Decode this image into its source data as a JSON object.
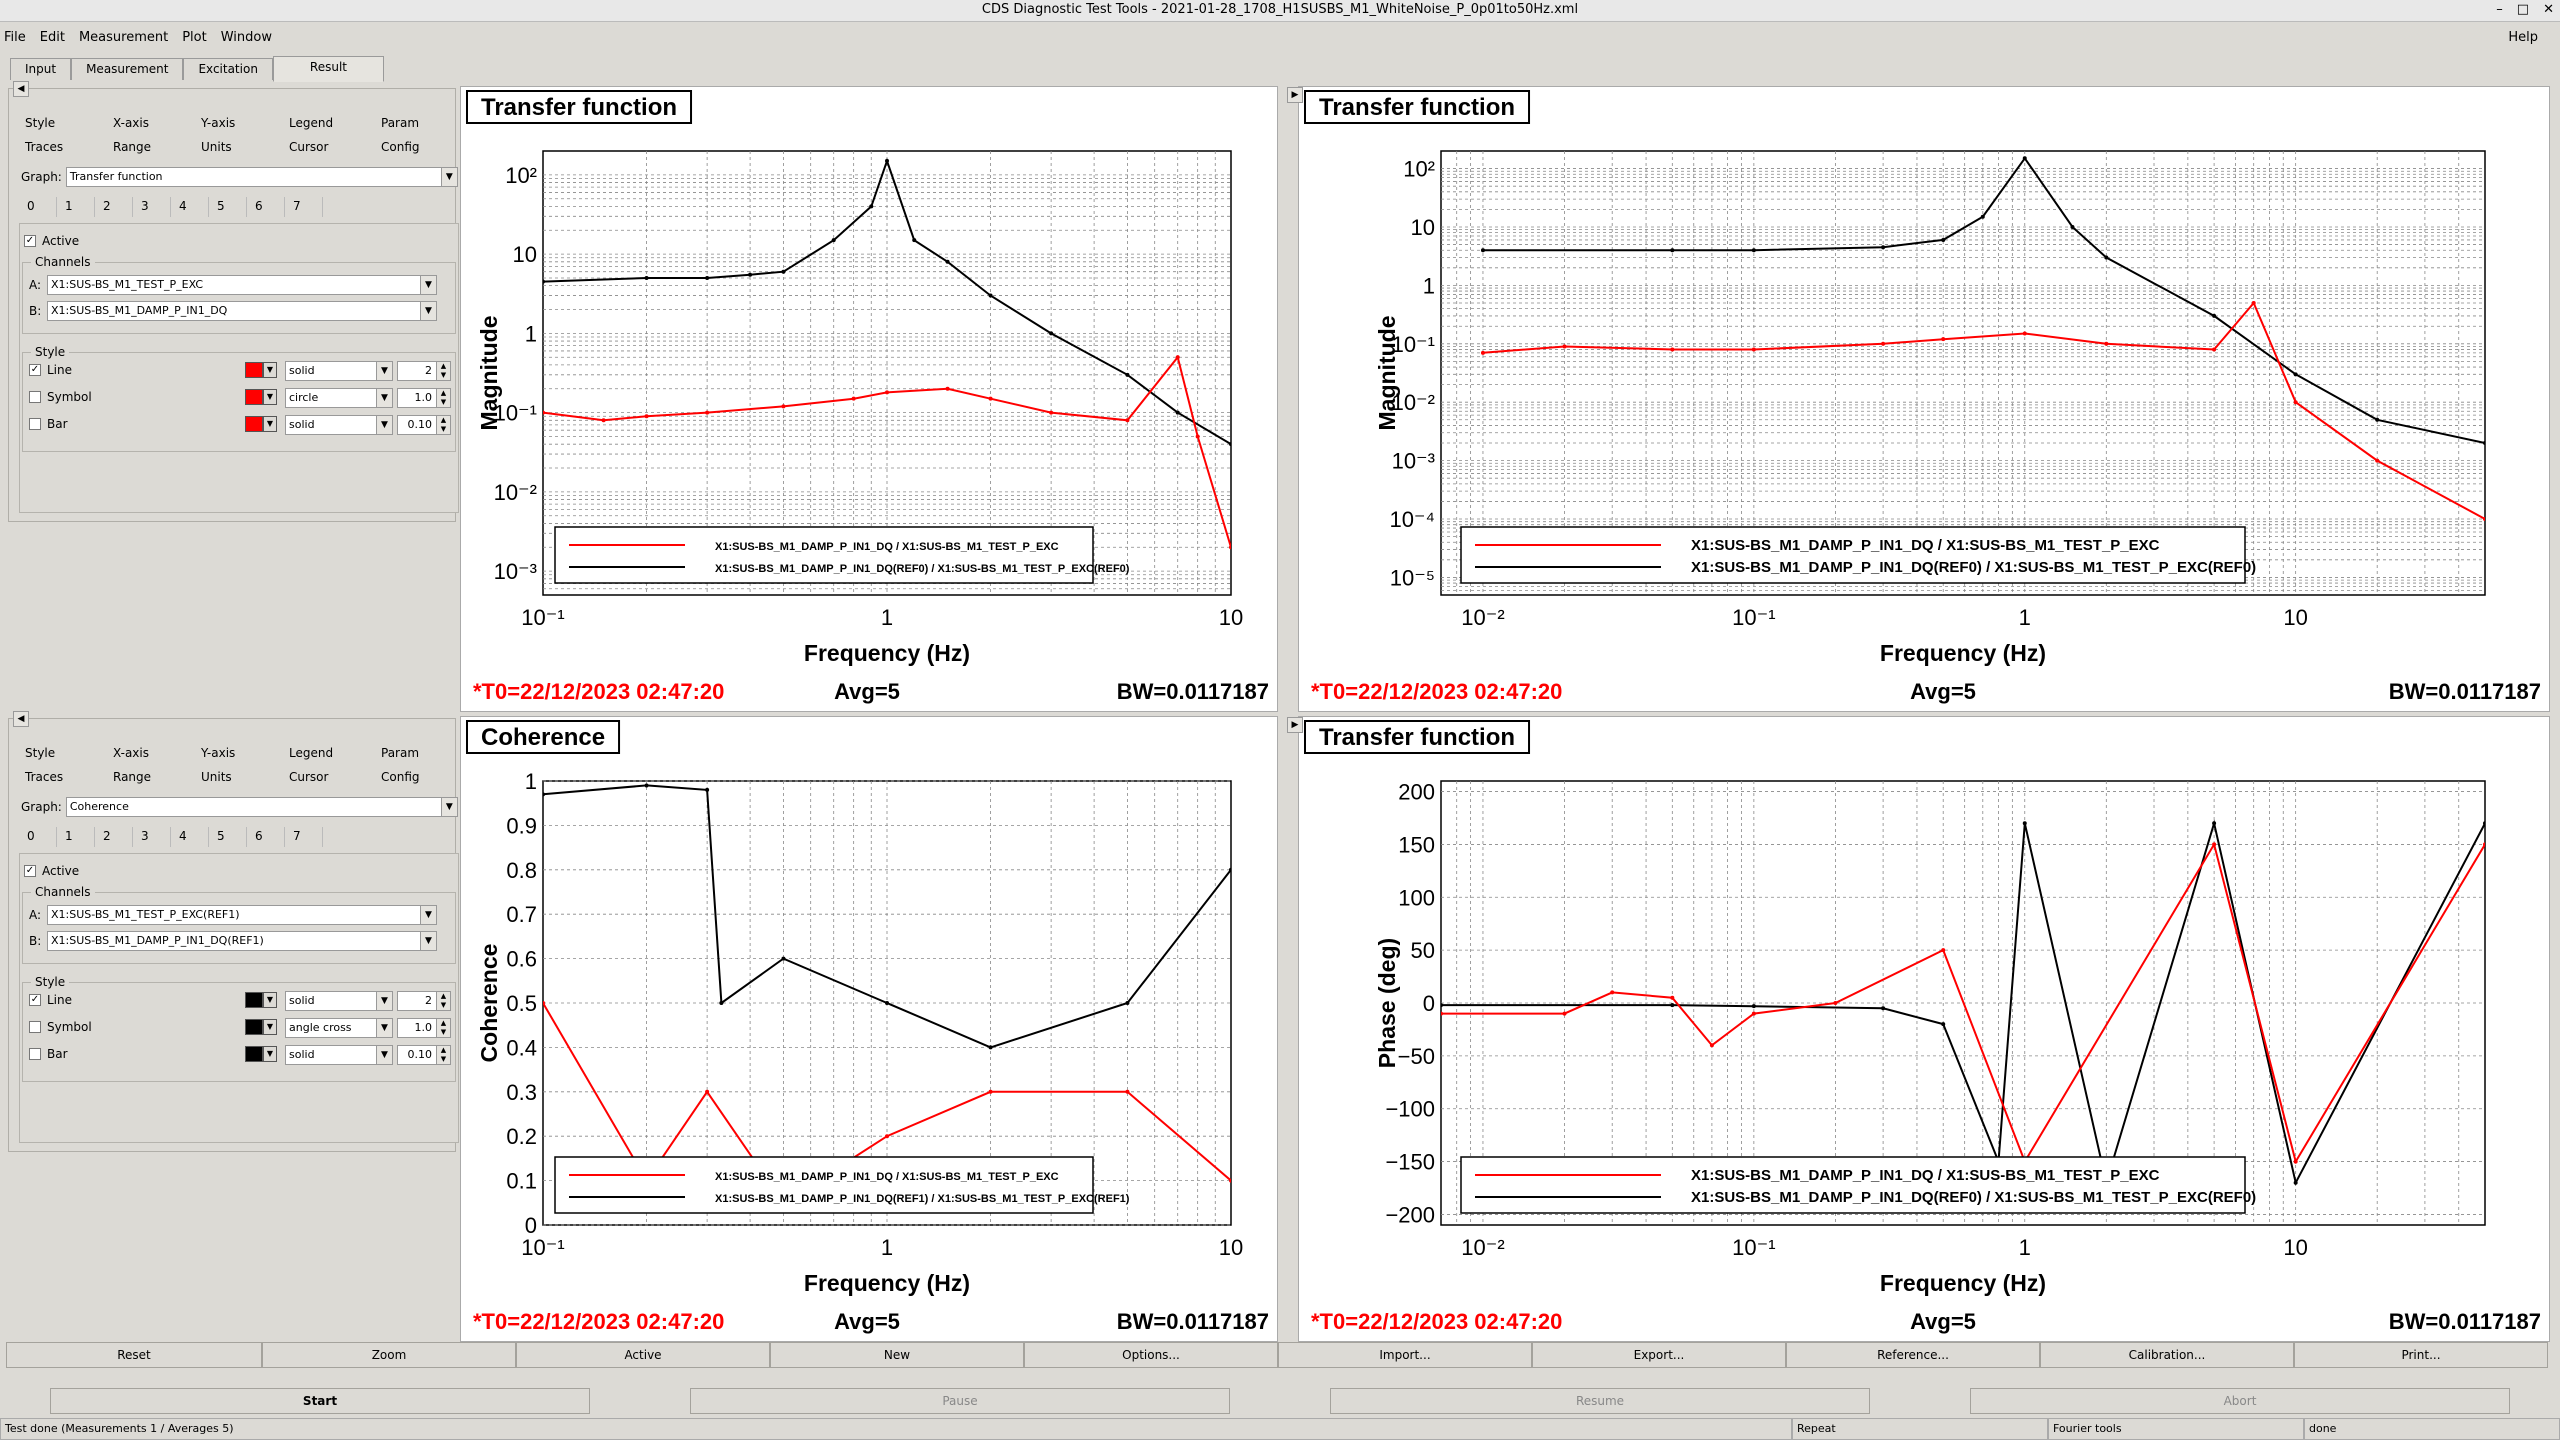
{
  "window": {
    "title": "CDS Diagnostic Test Tools - 2021-01-28_1708_H1SUSBS_M1_WhiteNoise_P_0p01to50Hz.xml"
  },
  "menu": [
    "File",
    "Edit",
    "Measurement",
    "Plot",
    "Window"
  ],
  "menu_help": "Help",
  "tabs": [
    "Input",
    "Measurement",
    "Excitation",
    "Result"
  ],
  "panels": [
    {
      "style_tabs": [
        "Style",
        "X-axis",
        "Y-axis",
        "Legend",
        "Param",
        "Traces",
        "Range",
        "Units",
        "Cursor",
        "Config"
      ],
      "graph_label": "Graph:",
      "graph": "Transfer function",
      "trace_tabs": [
        "0",
        "1",
        "2",
        "3",
        "4",
        "5",
        "6",
        "7"
      ],
      "active": "Active",
      "channels_label": "Channels",
      "a_label": "A:",
      "a": "X1:SUS-BS_M1_TEST_P_EXC",
      "b_label": "B:",
      "b": "X1:SUS-BS_M1_DAMP_P_IN1_DQ",
      "style_label": "Style",
      "line": {
        "label": "Line",
        "checked": "✓",
        "color": "#ff0000",
        "type": "solid",
        "width": "2"
      },
      "symbol": {
        "label": "Symbol",
        "color": "#ff0000",
        "type": "circle",
        "size": "1.0"
      },
      "bar": {
        "label": "Bar",
        "color": "#ff0000",
        "type": "solid",
        "width": "0.10"
      }
    },
    {
      "style_tabs": [
        "Style",
        "X-axis",
        "Y-axis",
        "Legend",
        "Param",
        "Traces",
        "Range",
        "Units",
        "Cursor",
        "Config"
      ],
      "graph_label": "Graph:",
      "graph": "Coherence",
      "trace_tabs": [
        "0",
        "1",
        "2",
        "3",
        "4",
        "5",
        "6",
        "7"
      ],
      "active": "Active",
      "channels_label": "Channels",
      "a_label": "A:",
      "a": "X1:SUS-BS_M1_TEST_P_EXC(REF1)",
      "b_label": "B:",
      "b": "X1:SUS-BS_M1_DAMP_P_IN1_DQ(REF1)",
      "style_label": "Style",
      "line": {
        "label": "Line",
        "checked": "✓",
        "color": "#000000",
        "type": "solid",
        "width": "2"
      },
      "symbol": {
        "label": "Symbol",
        "color": "#000000",
        "type": "angle cross",
        "size": "1.0"
      },
      "bar": {
        "label": "Bar",
        "color": "#000000",
        "type": "solid",
        "width": "0.10"
      }
    }
  ],
  "plots": [
    {
      "title": "Transfer function",
      "ylabel": "Magnitude",
      "xlabel": "Frequency (Hz)",
      "t0": "*T0=22/12/2023 02:47:20",
      "avg": "Avg=5",
      "bw": "BW=0.0117187",
      "xticks": [
        "10⁻¹",
        "1",
        "10"
      ],
      "yticks": [
        "10²",
        "10",
        "1",
        "10⁻¹",
        "10⁻²",
        "10⁻³"
      ],
      "legend": [
        "X1:SUS-BS_M1_DAMP_P_IN1_DQ / X1:SUS-BS_M1_TEST_P_EXC",
        "X1:SUS-BS_M1_DAMP_P_IN1_DQ(REF0) / X1:SUS-BS_M1_TEST_P_EXC(REF0)"
      ]
    },
    {
      "title": "Transfer function",
      "ylabel": "Magnitude",
      "xlabel": "Frequency (Hz)",
      "t0": "*T0=22/12/2023 02:47:20",
      "avg": "Avg=5",
      "bw": "BW=0.0117187",
      "xticks": [
        "10⁻²",
        "10⁻¹",
        "1",
        "10"
      ],
      "yticks": [
        "10²",
        "10",
        "1",
        "10⁻¹",
        "10⁻²",
        "10⁻³",
        "10⁻⁴",
        "10⁻⁵"
      ],
      "legend": [
        "X1:SUS-BS_M1_DAMP_P_IN1_DQ / X1:SUS-BS_M1_TEST_P_EXC",
        "X1:SUS-BS_M1_DAMP_P_IN1_DQ(REF0) / X1:SUS-BS_M1_TEST_P_EXC(REF0)"
      ]
    },
    {
      "title": "Coherence",
      "ylabel": "Coherence",
      "xlabel": "Frequency (Hz)",
      "t0": "*T0=22/12/2023 02:47:20",
      "avg": "Avg=5",
      "bw": "BW=0.0117187",
      "xticks": [
        "10⁻¹",
        "1",
        "10"
      ],
      "yticks": [
        "1",
        "0.9",
        "0.8",
        "0.7",
        "0.6",
        "0.5",
        "0.4",
        "0.3",
        "0.2",
        "0.1",
        "0"
      ],
      "legend": [
        "X1:SUS-BS_M1_DAMP_P_IN1_DQ / X1:SUS-BS_M1_TEST_P_EXC",
        "X1:SUS-BS_M1_DAMP_P_IN1_DQ(REF1) / X1:SUS-BS_M1_TEST_P_EXC(REF1)"
      ]
    },
    {
      "title": "Transfer function",
      "ylabel": "Phase (deg)",
      "xlabel": "Frequency (Hz)",
      "t0": "*T0=22/12/2023 02:47:20",
      "avg": "Avg=5",
      "bw": "BW=0.0117187",
      "xticks": [
        "10⁻²",
        "10⁻¹",
        "1",
        "10"
      ],
      "yticks": [
        "200",
        "150",
        "100",
        "50",
        "0",
        "−50",
        "−100",
        "−150",
        "−200"
      ],
      "legend": [
        "X1:SUS-BS_M1_DAMP_P_IN1_DQ / X1:SUS-BS_M1_TEST_P_EXC",
        "X1:SUS-BS_M1_DAMP_P_IN1_DQ(REF0) / X1:SUS-BS_M1_TEST_P_EXC(REF0)"
      ]
    }
  ],
  "buttons": [
    "Reset",
    "Zoom",
    "Active",
    "New",
    "Options...",
    "Import...",
    "Export...",
    "Reference...",
    "Calibration...",
    "Print..."
  ],
  "run_buttons": [
    "Start",
    "Pause",
    "Resume",
    "Abort"
  ],
  "status": [
    "Test done (Measurements 1 / Averages 5)",
    "Repeat",
    "Fourier tools",
    "done"
  ],
  "colors": {
    "measurement": "#ff0000",
    "reference": "#000000",
    "t0_text": "#ff0000"
  },
  "chart_data": [
    {
      "type": "line",
      "title": "Transfer function",
      "xlabel": "Frequency (Hz)",
      "ylabel": "Magnitude",
      "xscale": "log",
      "yscale": "log",
      "xlim": [
        0.1,
        10
      ],
      "ylim": [
        0.0005,
        200
      ],
      "grid": true,
      "legend_position": "bottom",
      "series": [
        {
          "name": "X1:SUS-BS_M1_DAMP_P_IN1_DQ / X1:SUS-BS_M1_TEST_P_EXC",
          "color": "#ff0000",
          "x": [
            0.1,
            0.15,
            0.2,
            0.3,
            0.5,
            0.8,
            1,
            1.5,
            2,
            3,
            5,
            7,
            8,
            10
          ],
          "y": [
            0.1,
            0.08,
            0.09,
            0.1,
            0.12,
            0.15,
            0.18,
            0.2,
            0.15,
            0.1,
            0.08,
            0.5,
            0.05,
            0.002
          ]
        },
        {
          "name": "X1:SUS-BS_M1_DAMP_P_IN1_DQ(REF0) / X1:SUS-BS_M1_TEST_P_EXC(REF0)",
          "color": "#000000",
          "x": [
            0.1,
            0.2,
            0.3,
            0.4,
            0.5,
            0.7,
            0.9,
            1,
            1.2,
            1.5,
            2,
            3,
            5,
            7,
            10
          ],
          "y": [
            4.5,
            5,
            5,
            5.5,
            6,
            15,
            40,
            150,
            15,
            8,
            3,
            1,
            0.3,
            0.1,
            0.04
          ]
        }
      ]
    },
    {
      "type": "line",
      "title": "Transfer function",
      "xlabel": "Frequency (Hz)",
      "ylabel": "Magnitude",
      "xscale": "log",
      "yscale": "log",
      "xlim": [
        0.007,
        50
      ],
      "ylim": [
        5e-06,
        200
      ],
      "grid": true,
      "legend_position": "bottom",
      "series": [
        {
          "name": "X1:SUS-BS_M1_DAMP_P_IN1_DQ / X1:SUS-BS_M1_TEST_P_EXC",
          "color": "#ff0000",
          "x": [
            0.01,
            0.02,
            0.05,
            0.1,
            0.3,
            0.5,
            1,
            2,
            5,
            7,
            10,
            20,
            50
          ],
          "y": [
            0.07,
            0.09,
            0.08,
            0.08,
            0.1,
            0.12,
            0.15,
            0.1,
            0.08,
            0.5,
            0.01,
            0.001,
            0.0001
          ]
        },
        {
          "name": "X1:SUS-BS_M1_DAMP_P_IN1_DQ(REF0) / X1:SUS-BS_M1_TEST_P_EXC(REF0)",
          "color": "#000000",
          "x": [
            0.01,
            0.05,
            0.1,
            0.3,
            0.5,
            0.7,
            1,
            1.5,
            2,
            5,
            10,
            20,
            50
          ],
          "y": [
            4,
            4,
            4,
            4.5,
            6,
            15,
            150,
            10,
            3,
            0.3,
            0.03,
            0.005,
            0.002
          ]
        }
      ]
    },
    {
      "type": "line",
      "title": "Coherence",
      "xlabel": "Frequency (Hz)",
      "ylabel": "Coherence",
      "xscale": "log",
      "xlim": [
        0.1,
        10
      ],
      "ylim": [
        0,
        1
      ],
      "grid": true,
      "legend_position": "bottom",
      "series": [
        {
          "name": "X1:SUS-BS_M1_DAMP_P_IN1_DQ / X1:SUS-BS_M1_TEST_P_EXC",
          "color": "#ff0000",
          "x": [
            0.1,
            0.2,
            0.3,
            0.5,
            1,
            2,
            5,
            10
          ],
          "y": [
            0.5,
            0.1,
            0.3,
            0.05,
            0.2,
            0.3,
            0.3,
            0.1
          ]
        },
        {
          "name": "X1:SUS-BS_M1_DAMP_P_IN1_DQ(REF1) / X1:SUS-BS_M1_TEST_P_EXC(REF1)",
          "color": "#000000",
          "x": [
            0.1,
            0.2,
            0.3,
            0.33,
            0.5,
            1,
            2,
            5,
            10
          ],
          "y": [
            0.97,
            0.99,
            0.98,
            0.5,
            0.6,
            0.5,
            0.4,
            0.5,
            0.8
          ]
        }
      ]
    },
    {
      "type": "line",
      "title": "Transfer function",
      "xlabel": "Frequency (Hz)",
      "ylabel": "Phase (deg)",
      "xscale": "log",
      "xlim": [
        0.007,
        50
      ],
      "ylim": [
        -210,
        210
      ],
      "grid": true,
      "legend_position": "bottom",
      "series": [
        {
          "name": "X1:SUS-BS_M1_DAMP_P_IN1_DQ / X1:SUS-BS_M1_TEST_P_EXC",
          "color": "#ff0000",
          "x": [
            0.007,
            0.02,
            0.03,
            0.05,
            0.07,
            0.1,
            0.2,
            0.5,
            1,
            5,
            10,
            50
          ],
          "y": [
            -10,
            -10,
            10,
            5,
            -40,
            -10,
            0,
            50,
            -150,
            150,
            -150,
            150
          ]
        },
        {
          "name": "X1:SUS-BS_M1_DAMP_P_IN1_DQ(REF0) / X1:SUS-BS_M1_TEST_P_EXC(REF0)",
          "color": "#000000",
          "x": [
            0.007,
            0.05,
            0.1,
            0.3,
            0.5,
            0.8,
            1,
            2,
            5,
            10,
            50
          ],
          "y": [
            -2,
            -2,
            -3,
            -5,
            -20,
            -150,
            170,
            -170,
            170,
            -170,
            170
          ]
        }
      ]
    }
  ]
}
